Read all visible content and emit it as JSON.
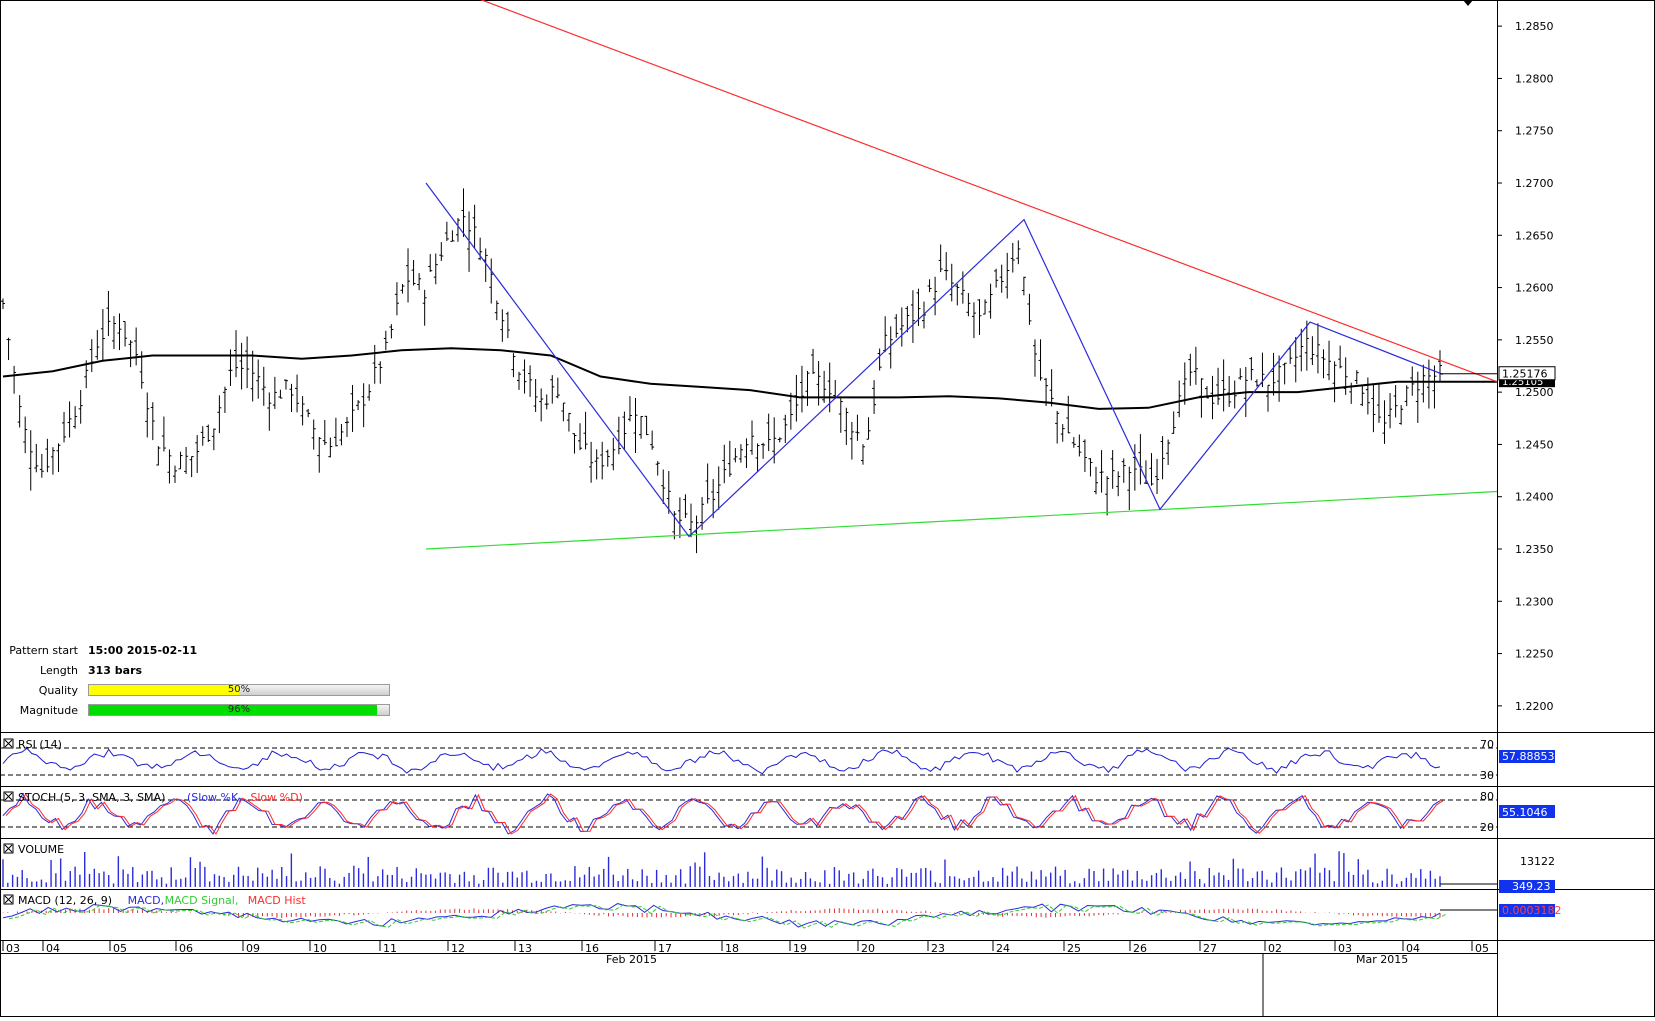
{
  "chart_data": {
    "type": "candlestick",
    "symbol_pair_note": "",
    "price_axis": {
      "range": [
        1.2175,
        1.2875
      ],
      "ticks": [
        "1.2850",
        "1.2800",
        "1.2750",
        "1.2700",
        "1.2650",
        "1.2600",
        "1.2550",
        "1.2500",
        "1.2450",
        "1.2400",
        "1.2350",
        "1.2300",
        "1.2250",
        "1.2200"
      ],
      "current_price_label": "1.25176",
      "ma_price_label": "1.25105"
    },
    "time_axis": {
      "day_labels": [
        "03",
        "04",
        "05",
        "06",
        "09",
        "10",
        "11",
        "12",
        "13",
        "16",
        "17",
        "18",
        "19",
        "20",
        "23",
        "24",
        "25",
        "26",
        "27",
        "02",
        "03",
        "04",
        "05"
      ],
      "month_labels": [
        "Feb 2015",
        "Mar 2015"
      ]
    },
    "price_series": [
      1.2585,
      1.2468,
      1.2425,
      1.2455,
      1.2492,
      1.2552,
      1.2568,
      1.2535,
      1.2455,
      1.2432,
      1.244,
      1.247,
      1.2525,
      1.252,
      1.2495,
      1.2505,
      1.247,
      1.2448,
      1.2468,
      1.25,
      1.254,
      1.261,
      1.2598,
      1.264,
      1.267,
      1.264,
      1.258,
      1.252,
      1.249,
      1.2505,
      1.245,
      1.243,
      1.245,
      1.2485,
      1.2448,
      1.238,
      1.2372,
      1.2398,
      1.2432,
      1.2462,
      1.2448,
      1.247,
      1.251,
      1.251,
      1.2478,
      1.2448,
      1.2545,
      1.2565,
      1.258,
      1.2615,
      1.2592,
      1.2568,
      1.2605,
      1.2642,
      1.252,
      1.248,
      1.2448,
      1.242,
      1.2418,
      1.2428,
      1.2412,
      1.247,
      1.252,
      1.2495,
      1.2498,
      1.2515,
      1.251,
      1.252,
      1.2548,
      1.2532,
      1.252,
      1.2505,
      1.2465,
      1.2492,
      1.2512,
      1.2517
    ],
    "moving_average": [
      1.2515,
      1.252,
      1.253,
      1.2535,
      1.2535,
      1.2535,
      1.2532,
      1.2535,
      1.254,
      1.2542,
      1.254,
      1.2535,
      1.2515,
      1.2508,
      1.2505,
      1.2502,
      1.2495,
      1.2495,
      1.2495,
      1.2496,
      1.2494,
      1.249,
      1.2484,
      1.2485,
      1.2495,
      1.25,
      1.25,
      1.2505,
      1.251,
      1.251,
      1.251
    ],
    "pattern_lines": {
      "resistance": {
        "from": [
          0,
          1.289
        ],
        "to": [
          1,
          1.251
        ]
      },
      "support": {
        "from": [
          0,
          1.235
        ],
        "to": [
          1,
          1.2405
        ]
      },
      "zigzag": [
        1.27,
        1.2362,
        1.2665,
        1.2388,
        1.2567,
        1.2517
      ]
    },
    "pattern_info": {
      "pattern_start_label": "Pattern start",
      "pattern_start": "15:00 2015-02-11",
      "length_label": "Length",
      "length": "313 bars",
      "quality_label": "Quality",
      "quality": "50%",
      "quality_value": 50,
      "magnitude_label": "Magnitude",
      "magnitude": "96%",
      "magnitude_value": 96
    },
    "indicators": {
      "rsi": {
        "title": "RSI (14)",
        "upper": "70",
        "lower": "30",
        "value_label": "57.88853",
        "color": "#1f1fd0"
      },
      "stoch": {
        "title": "STOCH (5, 3, SMA, 3, SMA)",
        "k_name": "Slow %K",
        "d_name": "Slow %D",
        "upper": "80",
        "lower": "20",
        "value_label": "55.1046"
      },
      "volume": {
        "title": "VOLUME",
        "max_label": "13122",
        "value_label": "349.23"
      },
      "macd": {
        "title": "MACD (12, 26, 9)",
        "macd_name": "MACD",
        "signal_name": "MACD Signal",
        "hist_name": "MACD Hist",
        "value_label": "0.0003182"
      }
    },
    "colors": {
      "candle": "#000000",
      "resistance": "#ff2a2a",
      "support": "#33dd33",
      "zigzag": "#2b2bdd",
      "ma": "#000000",
      "label_bg": "#1133ee",
      "quality": "#ffff00",
      "magnitude": "#00dd00"
    }
  }
}
